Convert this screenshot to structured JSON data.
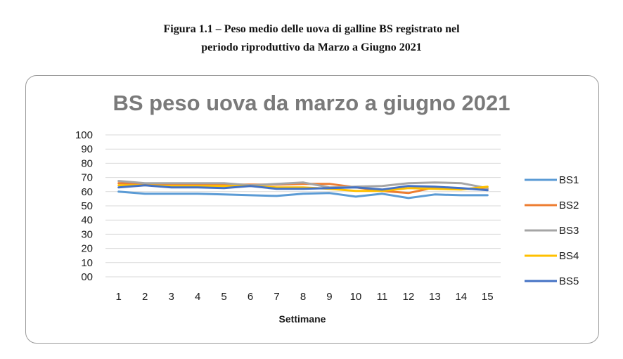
{
  "figure": {
    "caption_line1": "Figura 1.1 – Peso medio delle uova di galline BS registrato nel",
    "caption_line2": "periodo riproduttivo da Marzo a Giugno 2021"
  },
  "chart_data": {
    "type": "line",
    "title": "BS peso uova da marzo a giugno 2021",
    "xlabel": "Settimane",
    "ylabel": "",
    "ylim": [
      0,
      100
    ],
    "y_ticks": [
      "00",
      "10",
      "20",
      "30",
      "40",
      "50",
      "60",
      "70",
      "80",
      "90",
      "100"
    ],
    "y_tick_values": [
      0,
      10,
      20,
      30,
      40,
      50,
      60,
      70,
      80,
      90,
      100
    ],
    "categories": [
      "1",
      "2",
      "3",
      "4",
      "5",
      "6",
      "7",
      "8",
      "9",
      "10",
      "11",
      "12",
      "13",
      "14",
      "15"
    ],
    "grid": true,
    "legend_position": "right",
    "series": [
      {
        "name": "BS1",
        "color": "#5b9bd5",
        "values": [
          60,
          58.5,
          58.5,
          58.5,
          58,
          57.5,
          57,
          58.5,
          59,
          56.5,
          58.5,
          55.5,
          58,
          57.5,
          57.5
        ]
      },
      {
        "name": "BS2",
        "color": "#ed7d31",
        "values": [
          66,
          65.5,
          65,
          65,
          65,
          65,
          65,
          65.5,
          65.5,
          63,
          60.5,
          59,
          63,
          62,
          62
        ]
      },
      {
        "name": "BS3",
        "color": "#a5a5a5",
        "values": [
          67.5,
          66,
          66,
          66,
          66,
          64.5,
          65.5,
          66.5,
          63,
          63.5,
          64,
          66,
          66.5,
          66,
          62.5
        ]
      },
      {
        "name": "BS4",
        "color": "#ffc000",
        "values": [
          64.5,
          64.5,
          64,
          64,
          64,
          64,
          63,
          63,
          62,
          60.5,
          60.5,
          62.5,
          62,
          61.5,
          63.5
        ]
      },
      {
        "name": "BS5",
        "color": "#4472c4",
        "values": [
          63,
          64.5,
          63,
          63,
          62.5,
          64,
          62,
          62,
          62.5,
          63,
          61.5,
          64,
          63.5,
          62.5,
          61
        ]
      }
    ]
  }
}
